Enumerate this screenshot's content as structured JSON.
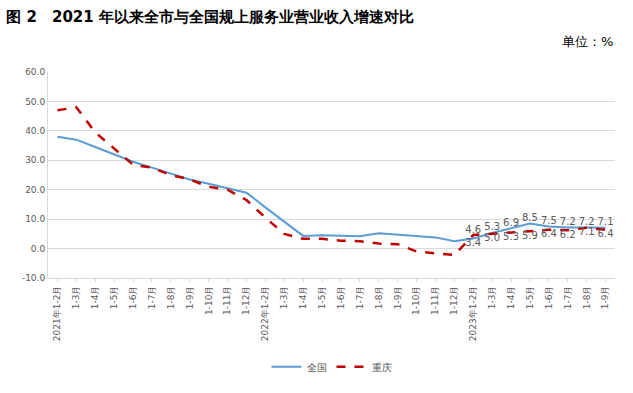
{
  "chart_data": {
    "type": "line",
    "title": "图 2　2021 年以来全市与全国规上服务业营业收入增速对比",
    "subtitle": "单位：%",
    "categories": [
      "2021年1-2月",
      "1-3月",
      "1-4月",
      "1-5月",
      "1-6月",
      "1-7月",
      "1-8月",
      "1-9月",
      "1-10月",
      "1-11月",
      "1-12月",
      "2022年1-2月",
      "1-3月",
      "1-4月",
      "1-5月",
      "1-6月",
      "1-7月",
      "1-8月",
      "1-9月",
      "1-10月",
      "1-11月",
      "1-12月",
      "2023年1-2月",
      "1-3月",
      "1-4月",
      "1-5月",
      "1-6月",
      "1-7月",
      "1-8月",
      "1-9月"
    ],
    "series": [
      {
        "name": "全国",
        "color": "#5b9bd5",
        "line_style": "solid",
        "values": [
          38,
          37,
          34.5,
          32,
          29.5,
          27.5,
          25.5,
          23.5,
          22,
          20.5,
          19,
          14,
          9,
          4.3,
          4.5,
          4.3,
          4.2,
          5.2,
          4.8,
          4.2,
          3.8,
          2.5,
          3.4,
          5.3,
          6.9,
          8.5,
          7.5,
          7.2,
          7.2,
          7.1
        ],
        "value_labels": [
          null,
          null,
          null,
          null,
          null,
          null,
          null,
          null,
          null,
          null,
          null,
          null,
          null,
          null,
          null,
          null,
          null,
          null,
          null,
          null,
          null,
          null,
          "3.4",
          "5.3",
          "6.9",
          "8.5",
          "7.5",
          "7.2",
          "7.2",
          "7.1"
        ]
      },
      {
        "name": "重庆",
        "color": "#c00000",
        "line_style": "dash",
        "values": [
          47,
          48,
          39.5,
          34,
          28.5,
          27.5,
          25,
          23.5,
          21,
          20,
          16.5,
          10.5,
          5,
          3.3,
          3.3,
          2.7,
          2.5,
          1.7,
          1.5,
          -1,
          -1.5,
          -2.2,
          4.6,
          5.0,
          5.3,
          5.9,
          6.4,
          6.2,
          7.1,
          6.4
        ],
        "value_labels": [
          null,
          null,
          null,
          null,
          null,
          null,
          null,
          null,
          null,
          null,
          null,
          null,
          null,
          null,
          null,
          null,
          null,
          null,
          null,
          null,
          null,
          null,
          "4.6",
          "5.0",
          "5.3",
          "5.9",
          "6.4",
          "6.2",
          "7.1",
          "6.4"
        ]
      }
    ],
    "ylim": [
      -10,
      60
    ],
    "yticks": [
      {
        "value": -10,
        "label": "-10.0"
      },
      {
        "value": 0,
        "label": "0.0"
      },
      {
        "value": 10,
        "label": "10.0"
      },
      {
        "value": 20,
        "label": "20.0"
      },
      {
        "value": 30,
        "label": "30.0"
      },
      {
        "value": 40,
        "label": "40.0"
      },
      {
        "value": 50,
        "label": "50.0"
      },
      {
        "value": 60,
        "label": "60.0"
      }
    ],
    "grid": true,
    "legend": "bottom",
    "data_labels": true
  }
}
